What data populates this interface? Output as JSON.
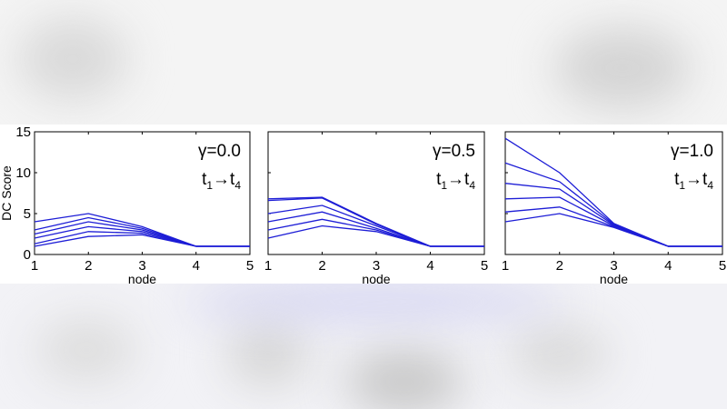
{
  "chart_data": [
    {
      "type": "line",
      "gamma_label": "γ=0.0",
      "time_label": {
        "a": "t",
        "a_sub": "1",
        "arrow": "→",
        "b": "t",
        "b_sub": "4"
      },
      "x": [
        1,
        2,
        3,
        4,
        5
      ],
      "xlabel": "node",
      "ylabel": "DC Score",
      "xlim": [
        1,
        5
      ],
      "ylim": [
        0,
        15
      ],
      "x_ticks": [
        "1",
        "2",
        "3",
        "4",
        "5"
      ],
      "y_ticks": [
        "0",
        "5",
        "10",
        "15"
      ],
      "series": [
        {
          "values": [
            1.0,
            2.2,
            2.4,
            1.0,
            1.0
          ]
        },
        {
          "values": [
            1.3,
            2.8,
            2.6,
            1.0,
            1.0
          ]
        },
        {
          "values": [
            2.0,
            3.4,
            2.8,
            1.0,
            1.0
          ]
        },
        {
          "values": [
            2.5,
            4.0,
            3.0,
            1.0,
            1.0
          ]
        },
        {
          "values": [
            3.0,
            4.5,
            3.2,
            1.0,
            1.0
          ]
        },
        {
          "values": [
            4.0,
            5.0,
            3.4,
            1.0,
            1.0
          ]
        }
      ]
    },
    {
      "type": "line",
      "gamma_label": "γ=0.5",
      "time_label": {
        "a": "t",
        "a_sub": "1",
        "arrow": "→",
        "b": "t",
        "b_sub": "4"
      },
      "x": [
        1,
        2,
        3,
        4,
        5
      ],
      "xlabel": "node",
      "ylabel": "",
      "xlim": [
        1,
        5
      ],
      "ylim": [
        0,
        15
      ],
      "x_ticks": [
        "1",
        "2",
        "3",
        "4",
        "5"
      ],
      "y_ticks": [],
      "series": [
        {
          "values": [
            2.0,
            3.5,
            2.8,
            1.0,
            1.0
          ]
        },
        {
          "values": [
            3.0,
            4.3,
            3.0,
            1.0,
            1.0
          ]
        },
        {
          "values": [
            4.0,
            5.2,
            3.2,
            1.0,
            1.0
          ]
        },
        {
          "values": [
            5.0,
            6.0,
            3.5,
            1.0,
            1.0
          ]
        },
        {
          "values": [
            6.6,
            6.9,
            3.7,
            1.0,
            1.0
          ]
        },
        {
          "values": [
            6.8,
            7.0,
            3.8,
            1.0,
            1.0
          ]
        }
      ]
    },
    {
      "type": "line",
      "gamma_label": "γ=1.0",
      "time_label": {
        "a": "t",
        "a_sub": "1",
        "arrow": "→",
        "b": "t",
        "b_sub": "4"
      },
      "x": [
        1,
        2,
        3,
        4,
        5
      ],
      "xlabel": "node",
      "ylabel": "",
      "xlim": [
        1,
        5
      ],
      "ylim": [
        0,
        15
      ],
      "x_ticks": [
        "1",
        "2",
        "3",
        "4",
        "5"
      ],
      "y_ticks": [],
      "series": [
        {
          "values": [
            4.0,
            5.0,
            3.3,
            1.0,
            1.0
          ]
        },
        {
          "values": [
            5.2,
            5.8,
            3.4,
            1.0,
            1.0
          ]
        },
        {
          "values": [
            6.8,
            7.0,
            3.5,
            1.0,
            1.0
          ]
        },
        {
          "values": [
            8.7,
            8.0,
            3.6,
            1.0,
            1.0
          ]
        },
        {
          "values": [
            11.2,
            8.9,
            3.7,
            1.0,
            1.0
          ]
        },
        {
          "values": [
            14.2,
            10.0,
            3.8,
            1.0,
            1.0
          ]
        }
      ]
    }
  ],
  "colors": {
    "line": "#1d1dd6",
    "axis": "#000000",
    "background": "#ffffff"
  }
}
